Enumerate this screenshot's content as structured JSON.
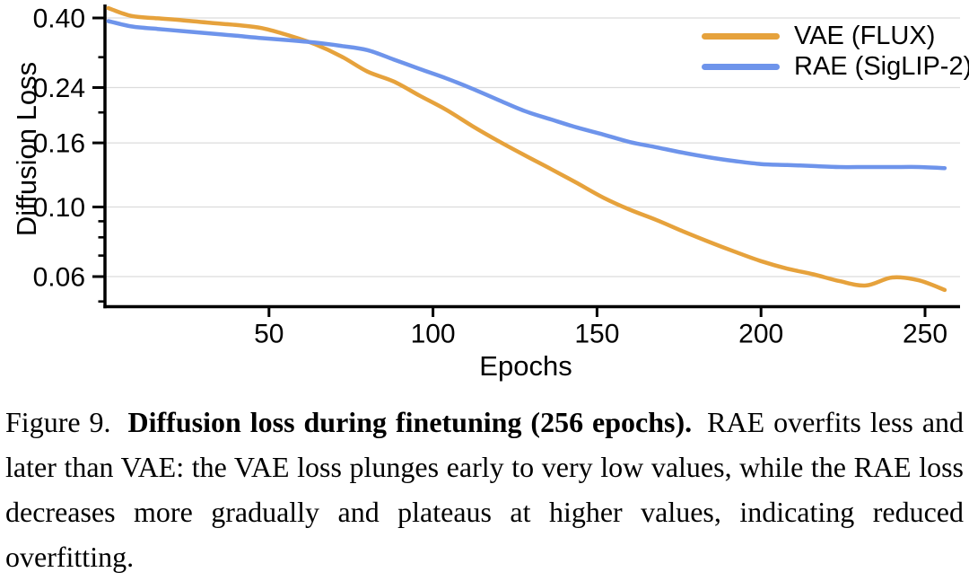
{
  "caption": {
    "label": "Figure 9.",
    "bold": "Diffusion loss during finetuning (256 epochs).",
    "body": "RAE overfits less and later than VAE: the VAE loss plunges early to very low values, while the RAE loss decreases more gradually and plateaus at higher values, indicating reduced overfitting."
  },
  "colors": {
    "vae_orange": "#E6A23C",
    "rae_blue": "#6E94EB",
    "grid": "#DCDCDC",
    "axis": "#000000"
  },
  "chart_data": {
    "type": "line",
    "title": "",
    "xlabel": "Epochs",
    "ylabel": "Diffusion Loss",
    "x_ticks": [
      50,
      100,
      150,
      200,
      250
    ],
    "x_range": [
      0,
      261
    ],
    "y_scale": "log",
    "y_range": [
      0.048,
      0.45
    ],
    "y_ticks_major": [
      0.4,
      0.24,
      0.16,
      0.1,
      0.06
    ],
    "y_tick_labels": [
      "0.40",
      "0.24",
      "0.16",
      "0.10",
      "0.06"
    ],
    "y_ticks_minor": [
      0.3,
      0.2,
      0.09,
      0.08,
      0.07,
      0.05
    ],
    "grid": "horizontal-major-only",
    "legend_position": "top-right",
    "epochs": [
      1,
      8,
      16,
      24,
      32,
      40,
      48,
      56,
      64,
      72,
      80,
      88,
      96,
      104,
      112,
      120,
      128,
      136,
      144,
      152,
      160,
      168,
      176,
      184,
      192,
      200,
      208,
      216,
      224,
      232,
      240,
      248,
      256
    ],
    "series": [
      {
        "name": "VAE (FLUX)",
        "color": "#E6A23C",
        "values": [
          0.43,
          0.406,
          0.399,
          0.393,
          0.386,
          0.38,
          0.371,
          0.352,
          0.33,
          0.302,
          0.27,
          0.251,
          0.226,
          0.204,
          0.181,
          0.162,
          0.146,
          0.132,
          0.119,
          0.107,
          0.098,
          0.091,
          0.0838,
          0.0775,
          0.072,
          0.0672,
          0.0636,
          0.061,
          0.058,
          0.0562,
          0.0596,
          0.0584,
          0.0544
        ]
      },
      {
        "name": "RAE (SigLIP-2)",
        "color": "#6E94EB",
        "values": [
          0.391,
          0.376,
          0.369,
          0.363,
          0.357,
          0.351,
          0.345,
          0.34,
          0.334,
          0.326,
          0.316,
          0.295,
          0.275,
          0.257,
          0.238,
          0.219,
          0.202,
          0.19,
          0.179,
          0.17,
          0.161,
          0.155,
          0.149,
          0.144,
          0.14,
          0.137,
          0.136,
          0.135,
          0.134,
          0.134,
          0.134,
          0.134,
          0.133
        ]
      }
    ]
  }
}
